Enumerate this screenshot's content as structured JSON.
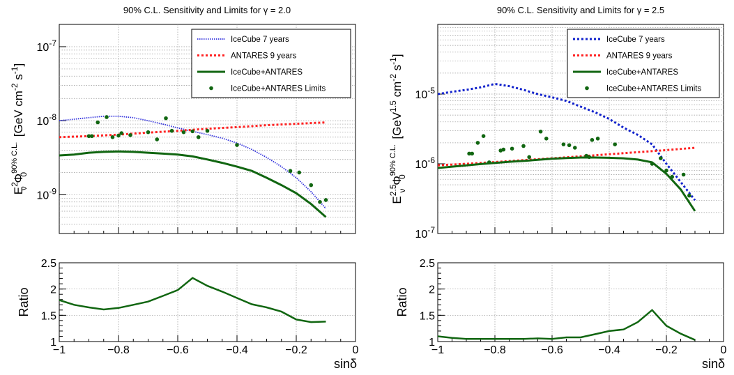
{
  "chart_data": [
    {
      "type": "line",
      "title": "90% C.L. Sensitivity and Limits for γ = 2.0",
      "ylabel_parts": {
        "e": "E",
        "nu": "ν",
        "eexp": "2",
        "phi": "Φ",
        "sub0": "0",
        "cl": "90% C.L.",
        "unit": "[GeV cm",
        "m2": "-2",
        "s": " s",
        "m1": "-1",
        "close": "]"
      },
      "y_scale": "log",
      "ylim": [
        3e-10,
        2e-07
      ],
      "xlim": [
        -1,
        0
      ],
      "y_ticks": [
        {
          "v": 1e-09,
          "base": "10",
          "exp": "-9"
        },
        {
          "v": 1e-08,
          "base": "10",
          "exp": "-8"
        },
        {
          "v": 1e-07,
          "base": "10",
          "exp": "-7"
        }
      ],
      "grid": true,
      "legend_position": "top-right",
      "series": [
        {
          "name": "IceCube 7 years",
          "style": "dotted",
          "color": "#3333dd",
          "x": [
            -1,
            -0.9,
            -0.85,
            -0.8,
            -0.75,
            -0.7,
            -0.65,
            -0.6,
            -0.55,
            -0.5,
            -0.45,
            -0.4,
            -0.35,
            -0.3,
            -0.25,
            -0.2,
            -0.15,
            -0.1
          ],
          "y": [
            1e-08,
            1.1e-08,
            1.15e-08,
            1.15e-08,
            1.1e-08,
            1e-08,
            9e-09,
            8e-09,
            7.2e-09,
            6.5e-09,
            5.8e-09,
            5e-09,
            4.1e-09,
            3.2e-09,
            2.4e-09,
            1.7e-09,
            1.1e-09,
            6.5e-10
          ]
        },
        {
          "name": "ANTARES 9 years",
          "style": "dashed",
          "color": "#ff2222",
          "x": [
            -1,
            -0.9,
            -0.8,
            -0.7,
            -0.6,
            -0.5,
            -0.4,
            -0.3,
            -0.2,
            -0.1
          ],
          "y": [
            6e-09,
            6.2e-09,
            6.5e-09,
            6.9e-09,
            7.3e-09,
            7.8e-09,
            8.2e-09,
            8.7e-09,
            9.1e-09,
            9.5e-09
          ]
        },
        {
          "name": "IceCube+ANTARES",
          "style": "solid",
          "color": "#116611",
          "x": [
            -1,
            -0.95,
            -0.9,
            -0.85,
            -0.8,
            -0.75,
            -0.7,
            -0.65,
            -0.6,
            -0.55,
            -0.5,
            -0.45,
            -0.4,
            -0.35,
            -0.3,
            -0.25,
            -0.2,
            -0.15,
            -0.1
          ],
          "y": [
            3.4e-09,
            3.5e-09,
            3.7e-09,
            3.8e-09,
            3.85e-09,
            3.8e-09,
            3.7e-09,
            3.6e-09,
            3.5e-09,
            3.3e-09,
            3e-09,
            2.7e-09,
            2.4e-09,
            2.1e-09,
            1.7e-09,
            1.35e-09,
            1.05e-09,
            7.5e-10,
            5e-10
          ]
        },
        {
          "name": "IceCube+ANTARES Limits",
          "style": "markers",
          "color": "#116611",
          "x": [
            -0.9,
            -0.89,
            -0.87,
            -0.84,
            -0.82,
            -0.8,
            -0.79,
            -0.76,
            -0.7,
            -0.67,
            -0.64,
            -0.62,
            -0.58,
            -0.55,
            -0.53,
            -0.5,
            -0.4,
            -0.22,
            -0.19,
            -0.15,
            -0.12,
            -0.1
          ],
          "y": [
            6.2e-09,
            6.2e-09,
            9.5e-09,
            1.12e-08,
            6e-09,
            6.3e-09,
            6.8e-09,
            6.4e-09,
            7e-09,
            5.6e-09,
            1.08e-08,
            7.3e-09,
            7e-09,
            7.2e-09,
            6e-09,
            7.3e-09,
            4.7e-09,
            2.1e-09,
            2e-09,
            1.35e-09,
            8e-10,
            8.5e-10
          ]
        }
      ],
      "ratio": {
        "ylabel": "Ratio",
        "xlabel": "sinδ",
        "ylim": [
          1,
          2.5
        ],
        "y_ticks": [
          "1",
          "1.5",
          "2",
          "2.5"
        ],
        "x_ticks": [
          "−1",
          "−0.8",
          "−0.6",
          "−0.4",
          "−0.2",
          "0"
        ],
        "x": [
          -1,
          -0.95,
          -0.9,
          -0.85,
          -0.8,
          -0.75,
          -0.7,
          -0.65,
          -0.6,
          -0.55,
          -0.5,
          -0.45,
          -0.4,
          -0.35,
          -0.3,
          -0.25,
          -0.2,
          -0.15,
          -0.1
        ],
        "y": [
          1.79,
          1.7,
          1.65,
          1.61,
          1.64,
          1.7,
          1.76,
          1.87,
          1.98,
          2.21,
          2.06,
          1.95,
          1.83,
          1.71,
          1.65,
          1.57,
          1.42,
          1.37,
          1.38
        ]
      }
    },
    {
      "type": "line",
      "title": "90% C.L. Sensitivity and Limits for γ = 2.5",
      "ylabel_parts": {
        "e": "E",
        "nu": "ν",
        "eexp": "2.5",
        "phi": "Φ",
        "sub0": "0",
        "cl": "90% C.L.",
        "unit": "[GeV",
        "m2": "1.5",
        "s": " cm",
        "m1": "-2",
        "tail": " s",
        "m3": "-1",
        "close": "]"
      },
      "y_scale": "log",
      "ylim": [
        1e-07,
        0.0001
      ],
      "xlim": [
        -1,
        0
      ],
      "y_ticks": [
        {
          "v": 1e-07,
          "base": "10",
          "exp": "-7"
        },
        {
          "v": 1e-06,
          "base": "10",
          "exp": "-6"
        },
        {
          "v": 1e-05,
          "base": "10",
          "exp": "-5"
        }
      ],
      "grid": true,
      "legend_position": "top-right",
      "series": [
        {
          "name": "IceCube 7 years",
          "style": "dotted",
          "color": "#1122cc",
          "x": [
            -1,
            -0.95,
            -0.9,
            -0.85,
            -0.8,
            -0.75,
            -0.7,
            -0.65,
            -0.6,
            -0.55,
            -0.5,
            -0.45,
            -0.4,
            -0.35,
            -0.3,
            -0.25,
            -0.2,
            -0.15,
            -0.1
          ],
          "y": [
            1e-05,
            1.08e-05,
            1.15e-05,
            1.25e-05,
            1.4e-05,
            1.3e-05,
            1.15e-05,
            1e-05,
            9e-06,
            8e-06,
            6.6e-06,
            5.5e-06,
            4.4e-06,
            3.3e-06,
            2.6e-06,
            1.9e-06,
            1e-06,
            5.5e-07,
            3e-07
          ]
        },
        {
          "name": "ANTARES 9 years",
          "style": "dashed",
          "color": "#ff2222",
          "x": [
            -1,
            -0.9,
            -0.8,
            -0.7,
            -0.6,
            -0.5,
            -0.4,
            -0.3,
            -0.2,
            -0.1
          ],
          "y": [
            9.5e-07,
            1e-06,
            1.06e-06,
            1.13e-06,
            1.2e-06,
            1.28e-06,
            1.37e-06,
            1.47e-06,
            1.57e-06,
            1.7e-06
          ]
        },
        {
          "name": "IceCube+ANTARES",
          "style": "solid",
          "color": "#116611",
          "x": [
            -1,
            -0.95,
            -0.9,
            -0.85,
            -0.8,
            -0.75,
            -0.7,
            -0.65,
            -0.6,
            -0.55,
            -0.5,
            -0.45,
            -0.4,
            -0.35,
            -0.3,
            -0.25,
            -0.2,
            -0.15,
            -0.1
          ],
          "y": [
            8.7e-07,
            9.1e-07,
            9.5e-07,
            9.9e-07,
            1.03e-06,
            1.07e-06,
            1.1e-06,
            1.14e-06,
            1.18e-06,
            1.21e-06,
            1.23e-06,
            1.23e-06,
            1.22e-06,
            1.2e-06,
            1.15e-06,
            1.05e-06,
            7.2e-07,
            4.3e-07,
            2.1e-07
          ]
        },
        {
          "name": "IceCube+ANTARES Limits",
          "style": "markers",
          "color": "#116611",
          "x": [
            -0.89,
            -0.88,
            -0.86,
            -0.84,
            -0.82,
            -0.78,
            -0.77,
            -0.74,
            -0.7,
            -0.68,
            -0.64,
            -0.62,
            -0.56,
            -0.54,
            -0.52,
            -0.48,
            -0.47,
            -0.46,
            -0.44,
            -0.38,
            -0.25,
            -0.22,
            -0.2,
            -0.18,
            -0.14,
            -0.12
          ],
          "y": [
            1.4e-06,
            1.4e-06,
            2e-06,
            2.5e-06,
            1.05e-06,
            1.55e-06,
            1.6e-06,
            1.65e-06,
            1.8e-06,
            1.25e-06,
            2.9e-06,
            2.3e-06,
            1.9e-06,
            1.85e-06,
            1.7e-06,
            1.3e-06,
            1.25e-06,
            2.2e-06,
            2.3e-06,
            1.9e-06,
            1e-06,
            1.2e-06,
            8e-07,
            6.5e-07,
            7e-07,
            3.5e-07
          ]
        }
      ],
      "ratio": {
        "ylabel": "Ratio",
        "xlabel": "sinδ",
        "ylim": [
          1,
          2.5
        ],
        "y_ticks": [
          "1",
          "1.5",
          "2",
          "2.5"
        ],
        "x_ticks": [
          "−1",
          "−0.8",
          "−0.6",
          "−0.4",
          "−0.2",
          "0"
        ],
        "x": [
          -1,
          -0.95,
          -0.9,
          -0.85,
          -0.8,
          -0.75,
          -0.7,
          -0.65,
          -0.6,
          -0.55,
          -0.5,
          -0.45,
          -0.4,
          -0.35,
          -0.3,
          -0.25,
          -0.2,
          -0.15,
          -0.1
        ],
        "y": [
          1.1,
          1.07,
          1.05,
          1.05,
          1.05,
          1.05,
          1.05,
          1.06,
          1.05,
          1.08,
          1.08,
          1.14,
          1.2,
          1.23,
          1.37,
          1.6,
          1.3,
          1.15,
          1.03
        ]
      }
    }
  ]
}
